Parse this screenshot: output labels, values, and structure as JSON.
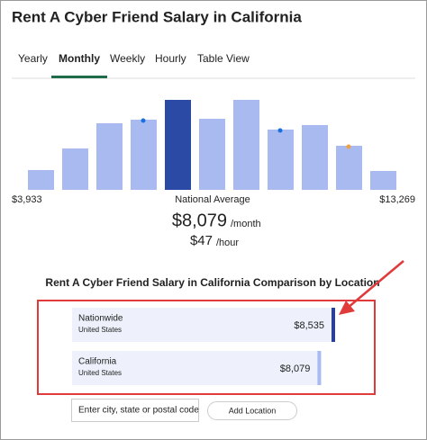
{
  "header": {
    "title": "Rent A Cyber Friend Salary in California"
  },
  "tabs": [
    "Yearly",
    "Monthly",
    "Weekly",
    "Hourly",
    "Table View"
  ],
  "active_tab": 1,
  "histogram": {
    "values": [
      22,
      46,
      74,
      78,
      100,
      79,
      100,
      67,
      72,
      49,
      21
    ],
    "highlight": 4,
    "ylim": [
      0,
      100
    ],
    "color": "#a8baf0",
    "highlight_color": "#2a4aa6",
    "min_label": "$3,933",
    "max_label": "$13,269",
    "center_label": "National Average"
  },
  "summary": {
    "monthly": "$8,079",
    "monthly_unit": "/month",
    "hourly": "$47",
    "hourly_unit": "/hour"
  },
  "comparison": {
    "title": "Rent A Cyber Friend Salary in California Comparison by Location",
    "rows": [
      {
        "name": "Nationwide",
        "location": "United States",
        "value": 8535,
        "label": "$8,535",
        "accent": "#2a3f9a"
      },
      {
        "name": "California",
        "location": "United States",
        "value": 8079,
        "label": "$8,079",
        "accent": "#a8baf0"
      }
    ]
  },
  "search": {
    "placeholder": "Enter city, state or postal code",
    "button": "Add Location"
  }
}
